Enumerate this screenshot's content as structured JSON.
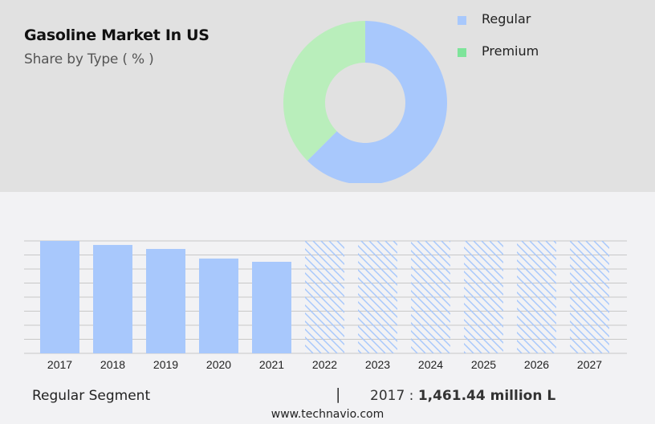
{
  "header": {
    "title": "Gasoline Market In US",
    "subtitle": "Share by Type ( % )"
  },
  "legend": [
    {
      "label": "Regular",
      "color": "#a8c8fc"
    },
    {
      "label": "Premium",
      "color": "#7ee49a"
    }
  ],
  "footer": {
    "segment": "Regular Segment",
    "separator": "|",
    "year_prefix": "2017 : ",
    "value": "1,461.44 million L",
    "site": "www.technavio.com"
  },
  "chart_data": [
    {
      "type": "pie",
      "title": "Gasoline Market In US",
      "subtitle": "Share by Type ( % )",
      "donut": true,
      "categories": [
        "Regular",
        "Premium"
      ],
      "values": [
        62.5,
        37.5
      ],
      "colors": [
        "#a8c8fc",
        "#b9eebb"
      ],
      "legend_position": "right"
    },
    {
      "type": "bar",
      "title": "Regular Segment",
      "categories": [
        "2017",
        "2018",
        "2019",
        "2020",
        "2021",
        "2022",
        "2023",
        "2024",
        "2025",
        "2026",
        "2027"
      ],
      "values": [
        1461.44,
        1409,
        1357,
        1232,
        1190,
        null,
        null,
        null,
        null,
        null,
        null
      ],
      "forecast_categories": [
        "2022",
        "2023",
        "2024",
        "2025",
        "2026",
        "2027"
      ],
      "forecast_style": "hatched",
      "unit": "million L",
      "xlabel": "",
      "ylabel": "",
      "grid": true,
      "bar_color": "#a8c8fc"
    }
  ]
}
